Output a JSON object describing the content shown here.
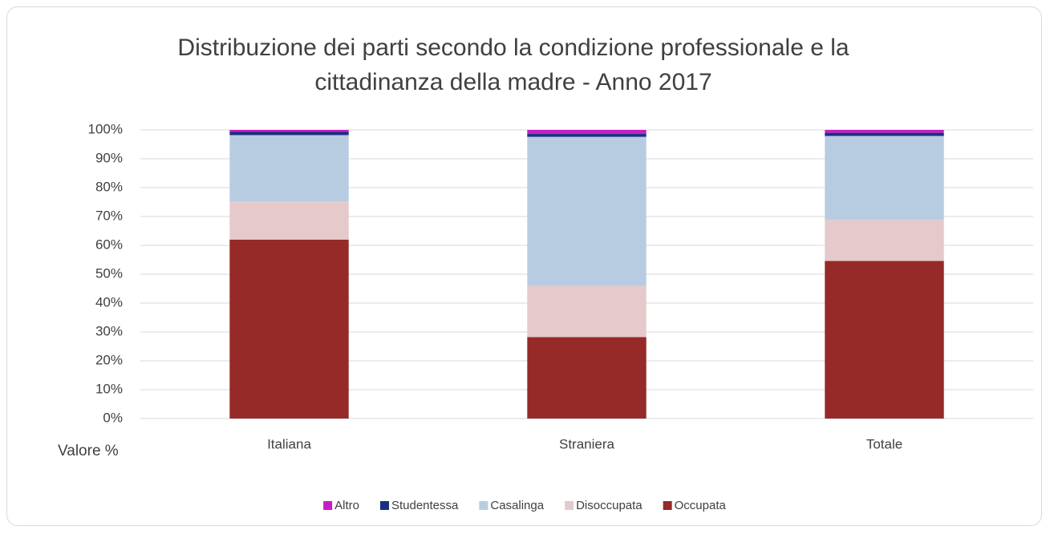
{
  "chart_data": {
    "type": "stacked_bar",
    "title": "Distribuzione dei parti secondo la condizione professionale e la cittadinanza della madre - Anno 2017",
    "y_label": "Valore %",
    "categories": [
      "Italiana",
      "Straniera",
      "Totale"
    ],
    "series": [
      {
        "name": "Occupata",
        "color": "#952a28",
        "values": [
          62.0,
          28.2,
          54.6
        ]
      },
      {
        "name": "Disoccupata",
        "color": "#e6c9ca",
        "values": [
          13.2,
          17.8,
          14.2
        ]
      },
      {
        "name": "Casalinga",
        "color": "#b7cce1",
        "values": [
          23.0,
          51.6,
          29.1
        ]
      },
      {
        "name": "Studentessa",
        "color": "#19317d",
        "values": [
          1.1,
          1.0,
          1.1
        ]
      },
      {
        "name": "Altro",
        "color": "#c41fc4",
        "values": [
          0.7,
          1.4,
          1.0
        ]
      }
    ],
    "ylim": [
      0,
      100
    ],
    "yticks": [
      {
        "value": 0,
        "label": "0%"
      },
      {
        "value": 10,
        "label": "10%"
      },
      {
        "value": 20,
        "label": "20%"
      },
      {
        "value": 30,
        "label": "30%"
      },
      {
        "value": 40,
        "label": "40%"
      },
      {
        "value": 50,
        "label": "50%"
      },
      {
        "value": 60,
        "label": "60%"
      },
      {
        "value": 70,
        "label": "70%"
      },
      {
        "value": 80,
        "label": "80%"
      },
      {
        "value": 90,
        "label": "90%"
      },
      {
        "value": 100,
        "label": "100%"
      }
    ],
    "grid": true,
    "legend": "bottom"
  }
}
